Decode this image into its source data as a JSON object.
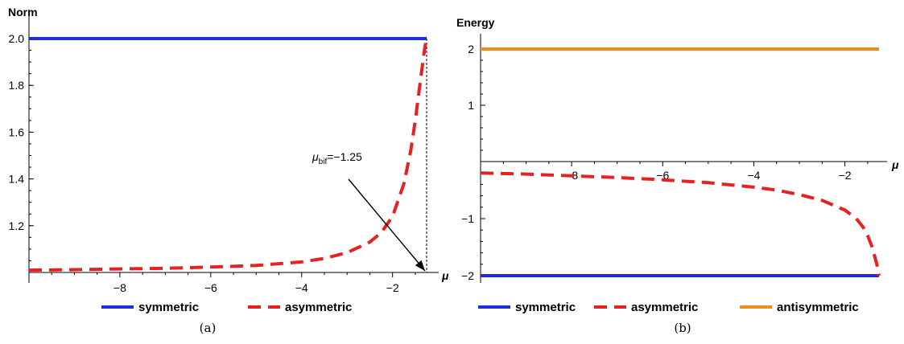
{
  "chart_data": [
    {
      "type": "line",
      "caption": "(a)",
      "xlabel": "μ",
      "ylabel": "Norm",
      "xlim": [
        -10,
        -1.25
      ],
      "ylim": [
        1.0,
        2.0
      ],
      "xticks": [
        -8,
        -6,
        -4,
        -2
      ],
      "xtick_labels": [
        "−8",
        "−6",
        "−4",
        "−2"
      ],
      "yticks": [
        1.2,
        1.4,
        1.6,
        1.8,
        2.0
      ],
      "ytick_labels": [
        "1.2",
        "1.4",
        "1.6",
        "1.8",
        "2.0"
      ],
      "grid": false,
      "legend_position": "bottom",
      "series": [
        {
          "name": "symmetric",
          "color": "#1f2de0",
          "style": "solid",
          "x": [
            -10,
            -1.25
          ],
          "y": [
            2.0,
            2.0
          ]
        },
        {
          "name": "asymmetric",
          "color": "#e8201f",
          "style": "dashed",
          "x": [
            -10,
            -9,
            -8,
            -7,
            -6,
            -5,
            -4,
            -3.5,
            -3,
            -2.5,
            -2.25,
            -2,
            -1.75,
            -1.6,
            -1.5,
            -1.4,
            -1.3,
            -1.25
          ],
          "y": [
            1.01,
            1.012,
            1.015,
            1.018,
            1.023,
            1.03,
            1.045,
            1.06,
            1.085,
            1.13,
            1.17,
            1.24,
            1.38,
            1.52,
            1.65,
            1.8,
            1.95,
            2.0
          ]
        }
      ],
      "annotation": {
        "symbol": "μ",
        "subscript": "bif",
        "text": "=−1.25",
        "points_to": [
          -1.25,
          1.0
        ]
      },
      "vline": -1.25
    },
    {
      "type": "line",
      "caption": "(b)",
      "xlabel": "μ",
      "ylabel": "Energy",
      "xlim": [
        -10,
        -1.25
      ],
      "ylim": [
        -2.0,
        2.3
      ],
      "xticks": [
        -8,
        -6,
        -4,
        -2
      ],
      "xtick_labels": [
        "−8",
        "−6",
        "−4",
        "−2"
      ],
      "yticks": [
        -2,
        -1,
        1,
        2
      ],
      "ytick_labels": [
        "−2",
        "−1",
        "1",
        "2"
      ],
      "grid": false,
      "legend_position": "bottom",
      "series": [
        {
          "name": "symmetric",
          "color": "#1f2de0",
          "style": "solid",
          "x": [
            -10,
            -1.25
          ],
          "y": [
            -2.0,
            -2.0
          ]
        },
        {
          "name": "asymmetric",
          "color": "#e8201f",
          "style": "dashed",
          "x": [
            -10,
            -9,
            -8,
            -7,
            -6,
            -5,
            -4,
            -3.5,
            -3,
            -2.5,
            -2,
            -1.75,
            -1.6,
            -1.5,
            -1.4,
            -1.3,
            -1.25
          ],
          "y": [
            -0.2,
            -0.22,
            -0.25,
            -0.28,
            -0.32,
            -0.37,
            -0.45,
            -0.5,
            -0.58,
            -0.68,
            -0.85,
            -1.0,
            -1.15,
            -1.3,
            -1.5,
            -1.8,
            -2.0
          ]
        },
        {
          "name": "antisymmetric",
          "color": "#f28c1f",
          "style": "solid",
          "x": [
            -10,
            -1.25
          ],
          "y": [
            2.0,
            2.0
          ]
        }
      ]
    }
  ]
}
